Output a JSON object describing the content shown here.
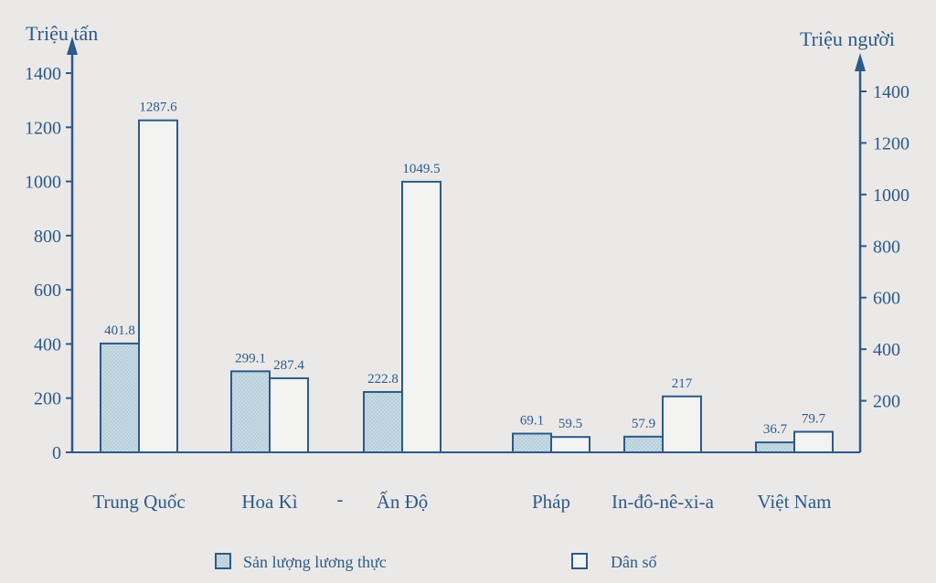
{
  "chart_data": {
    "type": "bar",
    "left_axis_title": "Triệu tấn",
    "right_axis_title": "Triệu người",
    "categories": [
      "Trung Quốc",
      "Hoa Kì",
      "Ấn Độ",
      "Pháp",
      "In-đô-nê-xi-a",
      "Việt Nam"
    ],
    "series": [
      {
        "name": "Sản lượng lương thực",
        "axis": "left",
        "values": [
          401.8,
          299.1,
          222.8,
          69.1,
          57.9,
          36.7
        ],
        "labels": [
          "401.8",
          "299.1",
          "222.8",
          "69.1",
          "57.9",
          "36.7"
        ]
      },
      {
        "name": "Dân số",
        "axis": "right",
        "values": [
          1287.6,
          287.4,
          1049.5,
          59.5,
          217,
          79.7
        ],
        "labels": [
          "1287.6",
          "287.4",
          "1049.5",
          "59.5",
          "217",
          "79.7"
        ]
      }
    ],
    "left_ticks": [
      "0",
      "200",
      "400",
      "600",
      "800",
      "1000",
      "1200",
      "1400"
    ],
    "right_ticks": [
      "200",
      "400",
      "600",
      "800",
      "1000",
      "1200",
      "1400"
    ],
    "left_ylim": [
      0,
      1400
    ],
    "right_ylim": [
      0,
      1400
    ],
    "separator_mark": "-",
    "colors": {
      "ink": "#2c5a8a",
      "food_fill": "#c7dbe3",
      "pop_fill": "#f3f3f2",
      "background": "#ebe9e8"
    },
    "legend_position": "bottom-center"
  }
}
